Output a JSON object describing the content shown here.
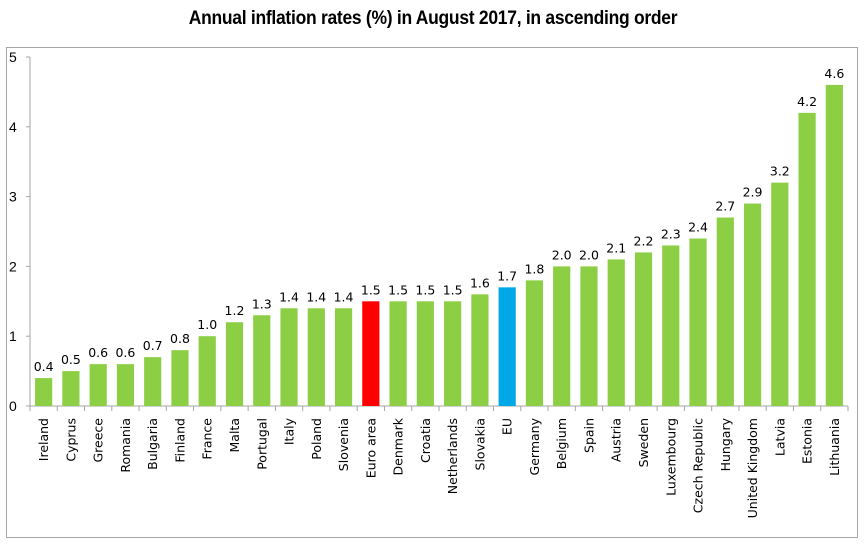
{
  "chart_data": {
    "type": "bar",
    "title": "Annual inflation rates (%) in August 2017, in ascending order",
    "xlabel": "",
    "ylabel": "",
    "ylim": [
      0,
      5
    ],
    "yticks": [
      "0",
      "1",
      "2",
      "3",
      "4",
      "5"
    ],
    "grid": false,
    "legend": "none",
    "categories": [
      "Ireland",
      "Cyprus",
      "Greece",
      "Romania",
      "Bulgaria",
      "Finland",
      "France",
      "Malta",
      "Portugal",
      "Italy",
      "Poland",
      "Slovenia",
      "Euro area",
      "Denmark",
      "Croatia",
      "Netherlands",
      "Slovakia",
      "EU",
      "Germany",
      "Belgium",
      "Spain",
      "Austria",
      "Sweden",
      "Luxembourg",
      "Czech Republic",
      "Hungary",
      "United Kingdom",
      "Latvia",
      "Estonia",
      "Lithuania"
    ],
    "values": [
      0.4,
      0.5,
      0.6,
      0.6,
      0.7,
      0.8,
      1.0,
      1.2,
      1.3,
      1.4,
      1.4,
      1.4,
      1.5,
      1.5,
      1.5,
      1.5,
      1.6,
      1.7,
      1.8,
      2.0,
      2.0,
      2.1,
      2.2,
      2.3,
      2.4,
      2.7,
      2.9,
      3.2,
      4.2,
      4.6
    ],
    "data_labels": [
      "0.4",
      "0.5",
      "0.6",
      "0.6",
      "0.7",
      "0.8",
      "1.0",
      "1.2",
      "1.3",
      "1.4",
      "1.4",
      "1.4",
      "1.5",
      "1.5",
      "1.5",
      "1.5",
      "1.6",
      "1.7",
      "1.8",
      "2.0",
      "2.0",
      "2.1",
      "2.2",
      "2.3",
      "2.4",
      "2.7",
      "2.9",
      "3.2",
      "4.2",
      "4.6"
    ],
    "colors": {
      "default": "#8ccf45",
      "highlight": {
        "Euro area": "#ff0000",
        "EU": "#00a8e8"
      }
    }
  }
}
